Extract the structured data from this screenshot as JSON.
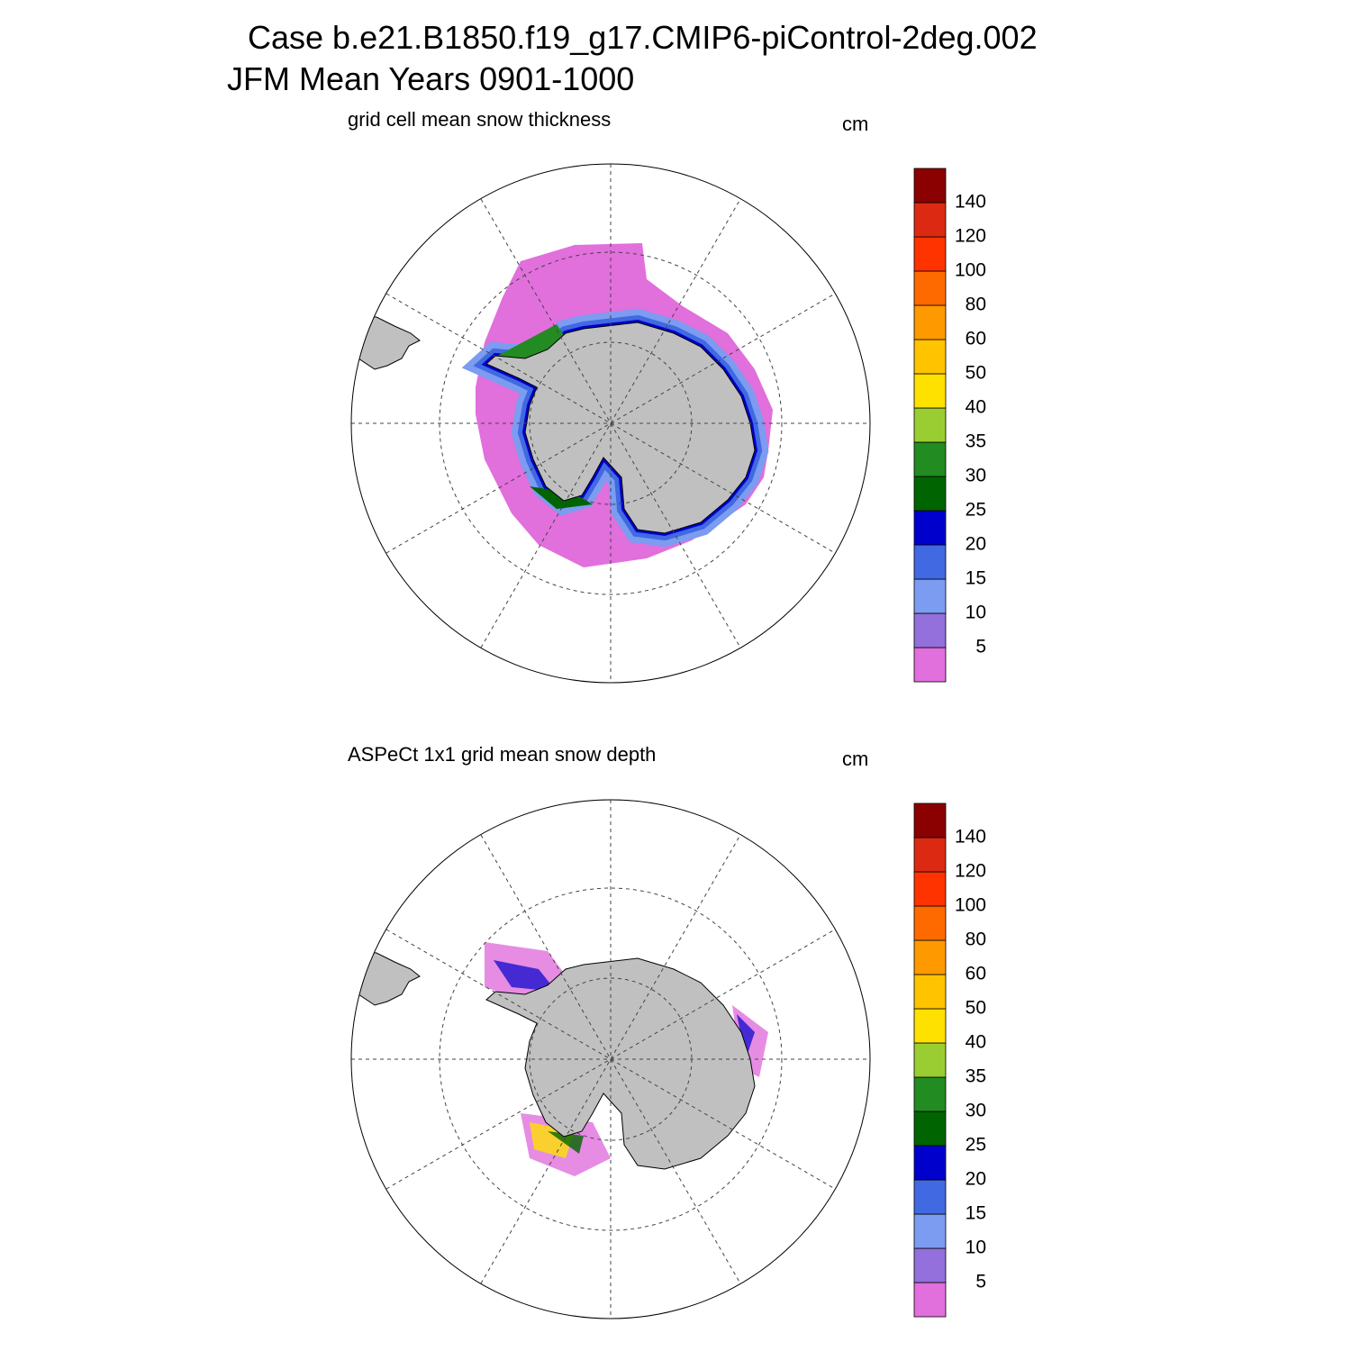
{
  "title": [
    "Case b.e21.B1850.f19_g17.CMIP6-piControl-2deg.002",
    "JFM Mean    Years 0901-1000"
  ],
  "panels": [
    {
      "subtitle": "grid cell mean snow thickness",
      "units": "cm"
    },
    {
      "subtitle": "ASPeCt 1x1 grid mean snow depth",
      "units": "cm"
    }
  ],
  "colorbar": {
    "levels": [
      5,
      10,
      15,
      20,
      25,
      30,
      35,
      40,
      50,
      60,
      80,
      100,
      120,
      140
    ],
    "colors": [
      "#e16fdc",
      "#9370db",
      "#7b9cf0",
      "#4169e1",
      "#0000cd",
      "#006400",
      "#228b22",
      "#9acd32",
      "#ffe100",
      "#ffc300",
      "#ff9900",
      "#ff6a00",
      "#ff3300",
      "#dc2a12",
      "#8b0000"
    ]
  }
}
